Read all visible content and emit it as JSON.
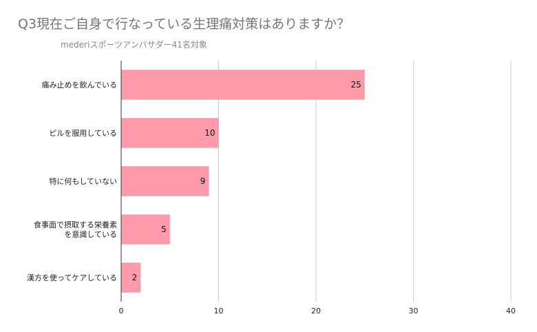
{
  "chart_data": {
    "type": "bar",
    "orientation": "horizontal",
    "title": "Q3現在ご自身で行なっている生理痛対策はありますか？",
    "subtitle": "mederiスポーツアンバサダー41名対象",
    "categories": [
      [
        "痛み止めを飲んでいる"
      ],
      [
        "ピルを服用している"
      ],
      [
        "特に何もしていない"
      ],
      [
        "食事面で摂取する栄養素",
        "を意識している"
      ],
      [
        "漢方を使ってケアしている"
      ]
    ],
    "values": [
      25,
      10,
      9,
      5,
      2
    ],
    "xlim": [
      0,
      40
    ],
    "xticks": [
      0,
      10,
      20,
      30,
      40
    ],
    "bar_color": "#ff9aaa",
    "grid": true,
    "legend": "none"
  }
}
